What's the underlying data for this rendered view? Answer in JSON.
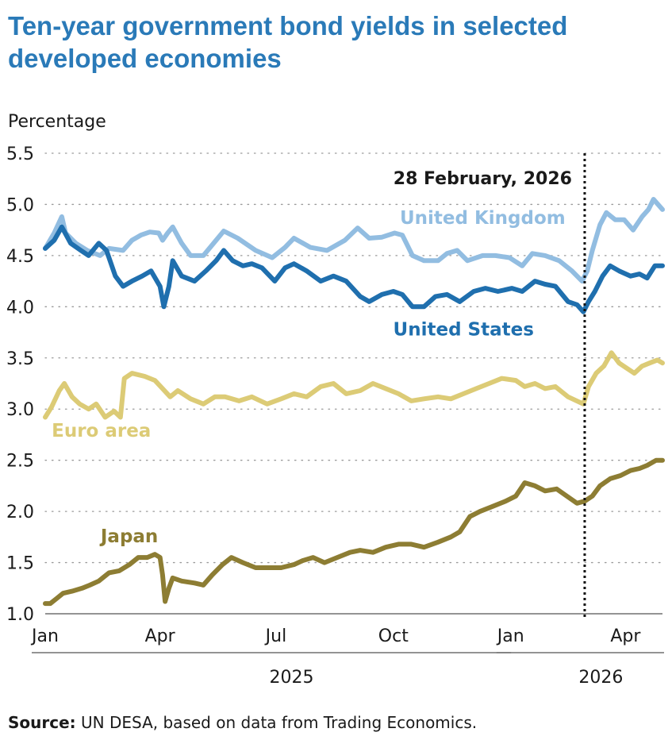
{
  "title": "Ten-year government bond yields in selected developed economies",
  "source_label": "Source:",
  "source_text": "UN DESA, based on data from Trading Economics.",
  "chart_data": {
    "type": "line",
    "ylabel": "Percentage",
    "ylim": [
      1.0,
      5.5
    ],
    "yticks": [
      "1.0",
      "1.5",
      "2.0",
      "2.5",
      "3.0",
      "3.5",
      "4.0",
      "4.5",
      "5.0",
      "5.5"
    ],
    "xlim": [
      "2025-01-01",
      "2026-04-30"
    ],
    "month_ticks": [
      {
        "label": "Jan",
        "date": "2025-01-01"
      },
      {
        "label": "Apr",
        "date": "2025-04-01"
      },
      {
        "label": "Jul",
        "date": "2025-07-01"
      },
      {
        "label": "Oct",
        "date": "2025-10-01"
      },
      {
        "label": "Jan",
        "date": "2026-01-01"
      },
      {
        "label": "Apr",
        "date": "2026-04-01"
      }
    ],
    "years": [
      {
        "label": "2025",
        "from": "2025-01-01",
        "to": "2025-12-31"
      },
      {
        "label": "2026",
        "from": "2026-01-01",
        "to": "2026-04-30"
      }
    ],
    "grid": "horizontal-dotted",
    "annotation": {
      "label": "28 February, 2026",
      "date": "2026-02-28"
    },
    "colors": {
      "United Kingdom": "#92bde1",
      "United States": "#1f6fae",
      "Euro area": "#dccb76",
      "Japan": "#8d7d33"
    },
    "series": [
      {
        "name": "United Kingdom",
        "points": [
          [
            "2025-01-01",
            4.57
          ],
          [
            "2025-01-08",
            4.72
          ],
          [
            "2025-01-14",
            4.88
          ],
          [
            "2025-01-17",
            4.72
          ],
          [
            "2025-01-25",
            4.62
          ],
          [
            "2025-02-03",
            4.55
          ],
          [
            "2025-02-13",
            4.5
          ],
          [
            "2025-02-20",
            4.57
          ],
          [
            "2025-03-03",
            4.55
          ],
          [
            "2025-03-10",
            4.65
          ],
          [
            "2025-03-17",
            4.7
          ],
          [
            "2025-03-24",
            4.73
          ],
          [
            "2025-03-31",
            4.72
          ],
          [
            "2025-04-03",
            4.65
          ],
          [
            "2025-04-07",
            4.72
          ],
          [
            "2025-04-11",
            4.78
          ],
          [
            "2025-04-18",
            4.62
          ],
          [
            "2025-04-25",
            4.5
          ],
          [
            "2025-05-05",
            4.5
          ],
          [
            "2025-05-15",
            4.65
          ],
          [
            "2025-05-21",
            4.74
          ],
          [
            "2025-06-01",
            4.67
          ],
          [
            "2025-06-15",
            4.55
          ],
          [
            "2025-06-28",
            4.48
          ],
          [
            "2025-07-08",
            4.58
          ],
          [
            "2025-07-15",
            4.67
          ],
          [
            "2025-07-28",
            4.58
          ],
          [
            "2025-08-10",
            4.55
          ],
          [
            "2025-08-24",
            4.65
          ],
          [
            "2025-09-03",
            4.77
          ],
          [
            "2025-09-12",
            4.67
          ],
          [
            "2025-09-22",
            4.68
          ],
          [
            "2025-10-02",
            4.72
          ],
          [
            "2025-10-08",
            4.7
          ],
          [
            "2025-10-16",
            4.5
          ],
          [
            "2025-10-25",
            4.45
          ],
          [
            "2025-11-05",
            4.45
          ],
          [
            "2025-11-12",
            4.52
          ],
          [
            "2025-11-20",
            4.55
          ],
          [
            "2025-11-28",
            4.45
          ],
          [
            "2025-12-10",
            4.5
          ],
          [
            "2025-12-20",
            4.5
          ],
          [
            "2025-12-31",
            4.48
          ],
          [
            "2026-01-10",
            4.4
          ],
          [
            "2026-01-18",
            4.52
          ],
          [
            "2026-01-28",
            4.5
          ],
          [
            "2026-02-08",
            4.45
          ],
          [
            "2026-02-18",
            4.35
          ],
          [
            "2026-02-26",
            4.25
          ],
          [
            "2026-03-02",
            4.35
          ],
          [
            "2026-03-06",
            4.55
          ],
          [
            "2026-03-12",
            4.8
          ],
          [
            "2026-03-17",
            4.92
          ],
          [
            "2026-03-24",
            4.85
          ],
          [
            "2026-03-31",
            4.85
          ],
          [
            "2026-04-07",
            4.75
          ],
          [
            "2026-04-14",
            4.88
          ],
          [
            "2026-04-19",
            4.95
          ],
          [
            "2026-04-23",
            5.05
          ],
          [
            "2026-04-30",
            4.95
          ]
        ]
      },
      {
        "name": "United States",
        "points": [
          [
            "2025-01-01",
            4.57
          ],
          [
            "2025-01-08",
            4.65
          ],
          [
            "2025-01-14",
            4.78
          ],
          [
            "2025-01-21",
            4.62
          ],
          [
            "2025-01-29",
            4.55
          ],
          [
            "2025-02-04",
            4.5
          ],
          [
            "2025-02-12",
            4.62
          ],
          [
            "2025-02-18",
            4.55
          ],
          [
            "2025-02-25",
            4.3
          ],
          [
            "2025-03-03",
            4.2
          ],
          [
            "2025-03-10",
            4.25
          ],
          [
            "2025-03-18",
            4.3
          ],
          [
            "2025-03-25",
            4.35
          ],
          [
            "2025-04-01",
            4.2
          ],
          [
            "2025-04-04",
            4.0
          ],
          [
            "2025-04-08",
            4.2
          ],
          [
            "2025-04-11",
            4.45
          ],
          [
            "2025-04-18",
            4.3
          ],
          [
            "2025-04-28",
            4.25
          ],
          [
            "2025-05-07",
            4.35
          ],
          [
            "2025-05-15",
            4.45
          ],
          [
            "2025-05-21",
            4.55
          ],
          [
            "2025-05-28",
            4.45
          ],
          [
            "2025-06-05",
            4.4
          ],
          [
            "2025-06-12",
            4.42
          ],
          [
            "2025-06-20",
            4.38
          ],
          [
            "2025-06-30",
            4.25
          ],
          [
            "2025-07-08",
            4.38
          ],
          [
            "2025-07-15",
            4.42
          ],
          [
            "2025-07-25",
            4.35
          ],
          [
            "2025-08-05",
            4.25
          ],
          [
            "2025-08-15",
            4.3
          ],
          [
            "2025-08-25",
            4.25
          ],
          [
            "2025-09-05",
            4.1
          ],
          [
            "2025-09-12",
            4.05
          ],
          [
            "2025-09-22",
            4.12
          ],
          [
            "2025-10-01",
            4.15
          ],
          [
            "2025-10-08",
            4.12
          ],
          [
            "2025-10-16",
            4.0
          ],
          [
            "2025-10-25",
            4.0
          ],
          [
            "2025-11-03",
            4.1
          ],
          [
            "2025-11-12",
            4.12
          ],
          [
            "2025-11-22",
            4.05
          ],
          [
            "2025-12-03",
            4.15
          ],
          [
            "2025-12-12",
            4.18
          ],
          [
            "2025-12-22",
            4.15
          ],
          [
            "2026-01-02",
            4.18
          ],
          [
            "2026-01-10",
            4.15
          ],
          [
            "2026-01-20",
            4.25
          ],
          [
            "2026-01-28",
            4.22
          ],
          [
            "2026-02-05",
            4.2
          ],
          [
            "2026-02-15",
            4.05
          ],
          [
            "2026-02-22",
            4.02
          ],
          [
            "2026-02-27",
            3.95
          ],
          [
            "2026-03-03",
            4.05
          ],
          [
            "2026-03-08",
            4.15
          ],
          [
            "2026-03-14",
            4.3
          ],
          [
            "2026-03-20",
            4.4
          ],
          [
            "2026-03-27",
            4.35
          ],
          [
            "2026-04-05",
            4.3
          ],
          [
            "2026-04-12",
            4.32
          ],
          [
            "2026-04-18",
            4.28
          ],
          [
            "2026-04-24",
            4.4
          ],
          [
            "2026-04-30",
            4.4
          ]
        ]
      },
      {
        "name": "Euro area",
        "points": [
          [
            "2025-01-01",
            2.92
          ],
          [
            "2025-01-06",
            3.02
          ],
          [
            "2025-01-12",
            3.18
          ],
          [
            "2025-01-16",
            3.25
          ],
          [
            "2025-01-22",
            3.12
          ],
          [
            "2025-01-28",
            3.05
          ],
          [
            "2025-02-04",
            3.0
          ],
          [
            "2025-02-10",
            3.05
          ],
          [
            "2025-02-17",
            2.92
          ],
          [
            "2025-02-24",
            2.98
          ],
          [
            "2025-03-01",
            2.92
          ],
          [
            "2025-03-04",
            3.3
          ],
          [
            "2025-03-10",
            3.35
          ],
          [
            "2025-03-20",
            3.32
          ],
          [
            "2025-03-28",
            3.28
          ],
          [
            "2025-04-03",
            3.2
          ],
          [
            "2025-04-09",
            3.12
          ],
          [
            "2025-04-15",
            3.18
          ],
          [
            "2025-04-25",
            3.1
          ],
          [
            "2025-05-05",
            3.05
          ],
          [
            "2025-05-14",
            3.12
          ],
          [
            "2025-05-22",
            3.12
          ],
          [
            "2025-06-02",
            3.08
          ],
          [
            "2025-06-12",
            3.12
          ],
          [
            "2025-06-24",
            3.05
          ],
          [
            "2025-07-05",
            3.1
          ],
          [
            "2025-07-15",
            3.15
          ],
          [
            "2025-07-25",
            3.12
          ],
          [
            "2025-08-05",
            3.22
          ],
          [
            "2025-08-15",
            3.25
          ],
          [
            "2025-08-25",
            3.15
          ],
          [
            "2025-09-05",
            3.18
          ],
          [
            "2025-09-15",
            3.25
          ],
          [
            "2025-09-25",
            3.2
          ],
          [
            "2025-10-05",
            3.15
          ],
          [
            "2025-10-15",
            3.08
          ],
          [
            "2025-10-25",
            3.1
          ],
          [
            "2025-11-05",
            3.12
          ],
          [
            "2025-11-15",
            3.1
          ],
          [
            "2025-11-25",
            3.15
          ],
          [
            "2025-12-05",
            3.2
          ],
          [
            "2025-12-15",
            3.25
          ],
          [
            "2025-12-25",
            3.3
          ],
          [
            "2026-01-05",
            3.28
          ],
          [
            "2026-01-12",
            3.22
          ],
          [
            "2026-01-20",
            3.25
          ],
          [
            "2026-01-28",
            3.2
          ],
          [
            "2026-02-05",
            3.22
          ],
          [
            "2026-02-15",
            3.12
          ],
          [
            "2026-02-27",
            3.05
          ],
          [
            "2026-03-03",
            3.22
          ],
          [
            "2026-03-09",
            3.35
          ],
          [
            "2026-03-15",
            3.42
          ],
          [
            "2026-03-21",
            3.55
          ],
          [
            "2026-03-27",
            3.45
          ],
          [
            "2026-04-02",
            3.4
          ],
          [
            "2026-04-08",
            3.35
          ],
          [
            "2026-04-14",
            3.42
          ],
          [
            "2026-04-20",
            3.45
          ],
          [
            "2026-04-26",
            3.48
          ],
          [
            "2026-04-30",
            3.45
          ]
        ]
      },
      {
        "name": "Japan",
        "points": [
          [
            "2025-01-01",
            1.1
          ],
          [
            "2025-01-05",
            1.1
          ],
          [
            "2025-01-10",
            1.15
          ],
          [
            "2025-01-15",
            1.2
          ],
          [
            "2025-01-22",
            1.22
          ],
          [
            "2025-01-30",
            1.25
          ],
          [
            "2025-02-05",
            1.28
          ],
          [
            "2025-02-12",
            1.32
          ],
          [
            "2025-02-20",
            1.4
          ],
          [
            "2025-02-28",
            1.42
          ],
          [
            "2025-03-08",
            1.48
          ],
          [
            "2025-03-15",
            1.55
          ],
          [
            "2025-03-22",
            1.55
          ],
          [
            "2025-03-28",
            1.58
          ],
          [
            "2025-04-01",
            1.55
          ],
          [
            "2025-04-03",
            1.38
          ],
          [
            "2025-04-05",
            1.12
          ],
          [
            "2025-04-08",
            1.25
          ],
          [
            "2025-04-11",
            1.35
          ],
          [
            "2025-04-18",
            1.32
          ],
          [
            "2025-04-28",
            1.3
          ],
          [
            "2025-05-05",
            1.28
          ],
          [
            "2025-05-12",
            1.38
          ],
          [
            "2025-05-20",
            1.48
          ],
          [
            "2025-05-27",
            1.55
          ],
          [
            "2025-06-05",
            1.5
          ],
          [
            "2025-06-15",
            1.45
          ],
          [
            "2025-06-25",
            1.45
          ],
          [
            "2025-07-05",
            1.45
          ],
          [
            "2025-07-15",
            1.48
          ],
          [
            "2025-07-22",
            1.52
          ],
          [
            "2025-07-30",
            1.55
          ],
          [
            "2025-08-08",
            1.5
          ],
          [
            "2025-08-18",
            1.55
          ],
          [
            "2025-08-28",
            1.6
          ],
          [
            "2025-09-05",
            1.62
          ],
          [
            "2025-09-15",
            1.6
          ],
          [
            "2025-09-25",
            1.65
          ],
          [
            "2025-10-05",
            1.68
          ],
          [
            "2025-10-15",
            1.68
          ],
          [
            "2025-10-25",
            1.65
          ],
          [
            "2025-11-05",
            1.7
          ],
          [
            "2025-11-15",
            1.75
          ],
          [
            "2025-11-22",
            1.8
          ],
          [
            "2025-11-30",
            1.95
          ],
          [
            "2025-12-08",
            2.0
          ],
          [
            "2025-12-18",
            2.05
          ],
          [
            "2025-12-28",
            2.1
          ],
          [
            "2026-01-05",
            2.15
          ],
          [
            "2026-01-12",
            2.28
          ],
          [
            "2026-01-20",
            2.25
          ],
          [
            "2026-01-28",
            2.2
          ],
          [
            "2026-02-06",
            2.22
          ],
          [
            "2026-02-14",
            2.15
          ],
          [
            "2026-02-22",
            2.08
          ],
          [
            "2026-02-28",
            2.1
          ],
          [
            "2026-03-06",
            2.15
          ],
          [
            "2026-03-12",
            2.25
          ],
          [
            "2026-03-20",
            2.32
          ],
          [
            "2026-03-28",
            2.35
          ],
          [
            "2026-04-05",
            2.4
          ],
          [
            "2026-04-12",
            2.42
          ],
          [
            "2026-04-18",
            2.45
          ],
          [
            "2026-04-25",
            2.5
          ],
          [
            "2026-04-30",
            2.5
          ]
        ]
      }
    ],
    "series_labels": [
      "United Kingdom",
      "United States",
      "Euro area",
      "Japan"
    ]
  }
}
